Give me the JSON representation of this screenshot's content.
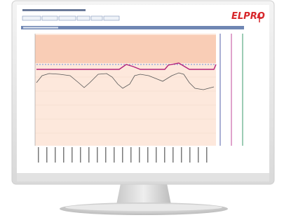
{
  "logo": "ELPRO"
}
